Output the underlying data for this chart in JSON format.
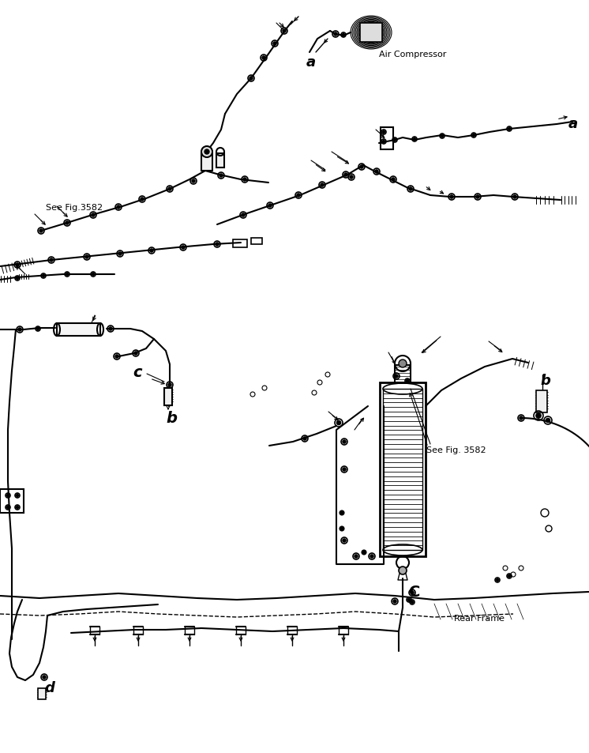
{
  "bg_color": "#ffffff",
  "line_color": "#000000",
  "labels": {
    "air_compressor": "Air Compressor",
    "see_fig_3582_1": "See Fig.3582",
    "see_fig_3582_2": "See Fig. 3582",
    "rear_frame": "Rear Frame",
    "a1": "a",
    "a2": "a",
    "b1": "b",
    "b2": "b",
    "c1": "c",
    "c2": "C",
    "d": "d"
  },
  "figsize": [
    7.46,
    9.54
  ],
  "dpi": 100
}
